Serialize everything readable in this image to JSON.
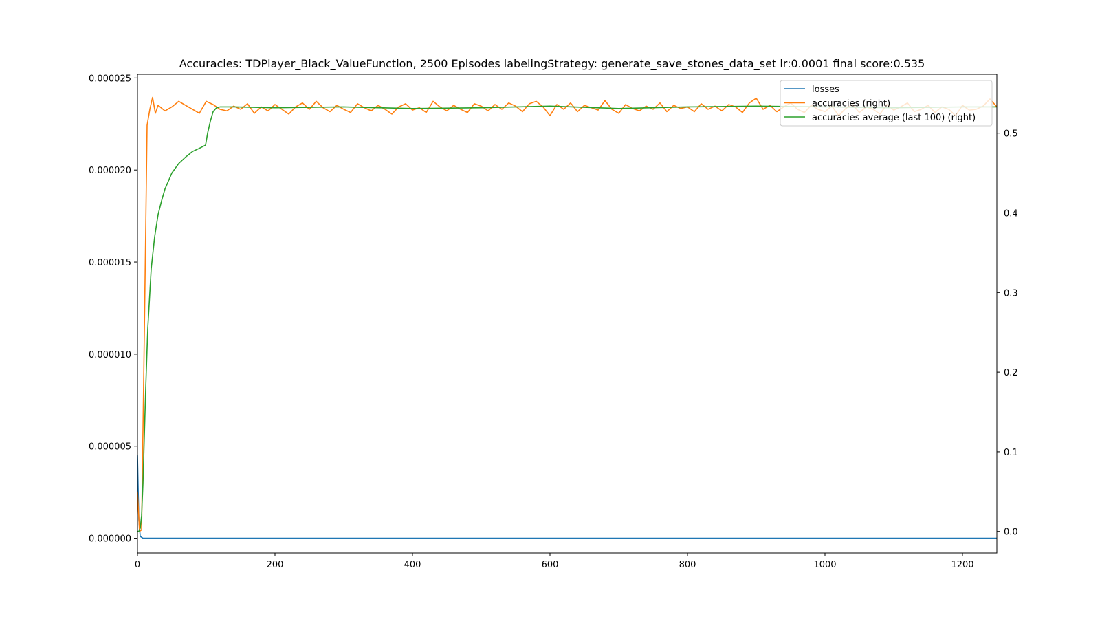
{
  "chart_data": {
    "type": "line",
    "title": "Accuracies: TDPlayer_Black_ValueFunction, 2500 Episodes labelingStrategy: generate_save_stones_data_set lr:0.0001 final score:0.535",
    "xlabel": "",
    "ylabel": "",
    "y2label": "",
    "xlim": [
      0,
      1250
    ],
    "ylim_left": [
      -8e-07,
      2.52e-05
    ],
    "ylim_right": [
      -0.027,
      0.574
    ],
    "x_ticks": [
      0,
      200,
      400,
      600,
      800,
      1000,
      1200
    ],
    "x_tick_labels": [
      "0",
      "200",
      "400",
      "600",
      "800",
      "1000",
      "1200"
    ],
    "y_left_ticks": [
      0,
      5e-06,
      1e-05,
      1.5e-05,
      2e-05,
      2.5e-05
    ],
    "y_left_tick_labels": [
      "0.000000",
      "0.000005",
      "0.000010",
      "0.000015",
      "0.000020",
      "0.000025"
    ],
    "y_right_ticks": [
      0,
      0.1,
      0.2,
      0.3,
      0.4,
      0.5
    ],
    "y_right_tick_labels": [
      "0.0",
      "0.1",
      "0.2",
      "0.3",
      "0.4",
      "0.5"
    ],
    "grid": false,
    "legend_position": "top-right",
    "series": [
      {
        "name": "losses",
        "axis": "left",
        "color": "#1f77b4",
        "x": [
          0,
          2,
          4,
          8,
          20,
          100,
          400,
          800,
          1250
        ],
        "values": [
          4.5e-06,
          1e-06,
          1e-07,
          0.0,
          0.0,
          0.0,
          0.0,
          0.0,
          0.0
        ]
      },
      {
        "name": "accuracies (right)",
        "axis": "right",
        "color": "#ff7f0e",
        "x": [
          0,
          3,
          6,
          10,
          14,
          18,
          22,
          26,
          30,
          40,
          50,
          60,
          70,
          80,
          90,
          100,
          110,
          120,
          130,
          140,
          150,
          160,
          170,
          180,
          190,
          200,
          210,
          220,
          230,
          240,
          250,
          260,
          270,
          280,
          290,
          300,
          310,
          320,
          330,
          340,
          350,
          360,
          370,
          380,
          390,
          400,
          410,
          420,
          430,
          440,
          450,
          460,
          470,
          480,
          490,
          500,
          510,
          520,
          530,
          540,
          550,
          560,
          570,
          580,
          590,
          600,
          610,
          620,
          630,
          640,
          650,
          660,
          670,
          680,
          690,
          700,
          710,
          720,
          730,
          740,
          750,
          760,
          770,
          780,
          790,
          800,
          810,
          820,
          830,
          840,
          850,
          860,
          870,
          880,
          890,
          900,
          910,
          920,
          930,
          940,
          950,
          960,
          970,
          980,
          990,
          1000,
          1010,
          1020,
          1030,
          1040,
          1050,
          1060,
          1070,
          1080,
          1090,
          1100,
          1110,
          1120,
          1130,
          1140,
          1150,
          1160,
          1170,
          1180,
          1190,
          1200,
          1210,
          1220,
          1230,
          1240,
          1250
        ],
        "values": [
          0.05,
          0.0,
          0.002,
          0.25,
          0.51,
          0.53,
          0.545,
          0.525,
          0.535,
          0.528,
          0.533,
          0.54,
          0.535,
          0.53,
          0.525,
          0.54,
          0.536,
          0.53,
          0.528,
          0.534,
          0.53,
          0.537,
          0.525,
          0.533,
          0.528,
          0.536,
          0.53,
          0.524,
          0.533,
          0.538,
          0.53,
          0.54,
          0.532,
          0.527,
          0.535,
          0.53,
          0.526,
          0.537,
          0.532,
          0.528,
          0.535,
          0.53,
          0.524,
          0.533,
          0.537,
          0.529,
          0.532,
          0.526,
          0.54,
          0.533,
          0.528,
          0.535,
          0.53,
          0.526,
          0.537,
          0.534,
          0.528,
          0.536,
          0.53,
          0.538,
          0.534,
          0.527,
          0.537,
          0.54,
          0.533,
          0.522,
          0.536,
          0.53,
          0.538,
          0.527,
          0.535,
          0.532,
          0.529,
          0.541,
          0.53,
          0.525,
          0.536,
          0.531,
          0.528,
          0.534,
          0.53,
          0.538,
          0.527,
          0.535,
          0.531,
          0.533,
          0.527,
          0.537,
          0.53,
          0.534,
          0.528,
          0.536,
          0.533,
          0.526,
          0.538,
          0.544,
          0.53,
          0.535,
          0.527,
          0.533,
          0.538,
          0.53,
          0.526,
          0.535,
          0.53,
          0.527,
          0.534,
          0.522,
          0.531,
          0.536,
          0.526,
          0.533,
          0.53,
          0.524,
          0.536,
          0.529,
          0.533,
          0.538,
          0.527,
          0.53,
          0.535,
          0.526,
          0.533,
          0.53,
          0.522,
          0.535,
          0.529,
          0.53,
          0.534,
          0.543,
          0.533
        ]
      },
      {
        "name": "accuracies average (last 100) (right)",
        "axis": "right",
        "color": "#2ca02c",
        "x": [
          0,
          2,
          4,
          6,
          8,
          10,
          12,
          15,
          20,
          25,
          30,
          35,
          40,
          50,
          60,
          70,
          80,
          90,
          99,
          102,
          106,
          110,
          115,
          120,
          140,
          200,
          300,
          400,
          500,
          600,
          700,
          800,
          900,
          1000,
          1100,
          1200,
          1250
        ],
        "values": [
          0.0,
          0.0,
          0.004,
          0.02,
          0.06,
          0.12,
          0.18,
          0.255,
          0.33,
          0.37,
          0.398,
          0.415,
          0.43,
          0.45,
          0.462,
          0.47,
          0.477,
          0.481,
          0.485,
          0.5,
          0.515,
          0.527,
          0.532,
          0.533,
          0.533,
          0.532,
          0.533,
          0.531,
          0.532,
          0.534,
          0.531,
          0.533,
          0.534,
          0.533,
          0.532,
          0.533,
          0.533
        ]
      }
    ]
  }
}
